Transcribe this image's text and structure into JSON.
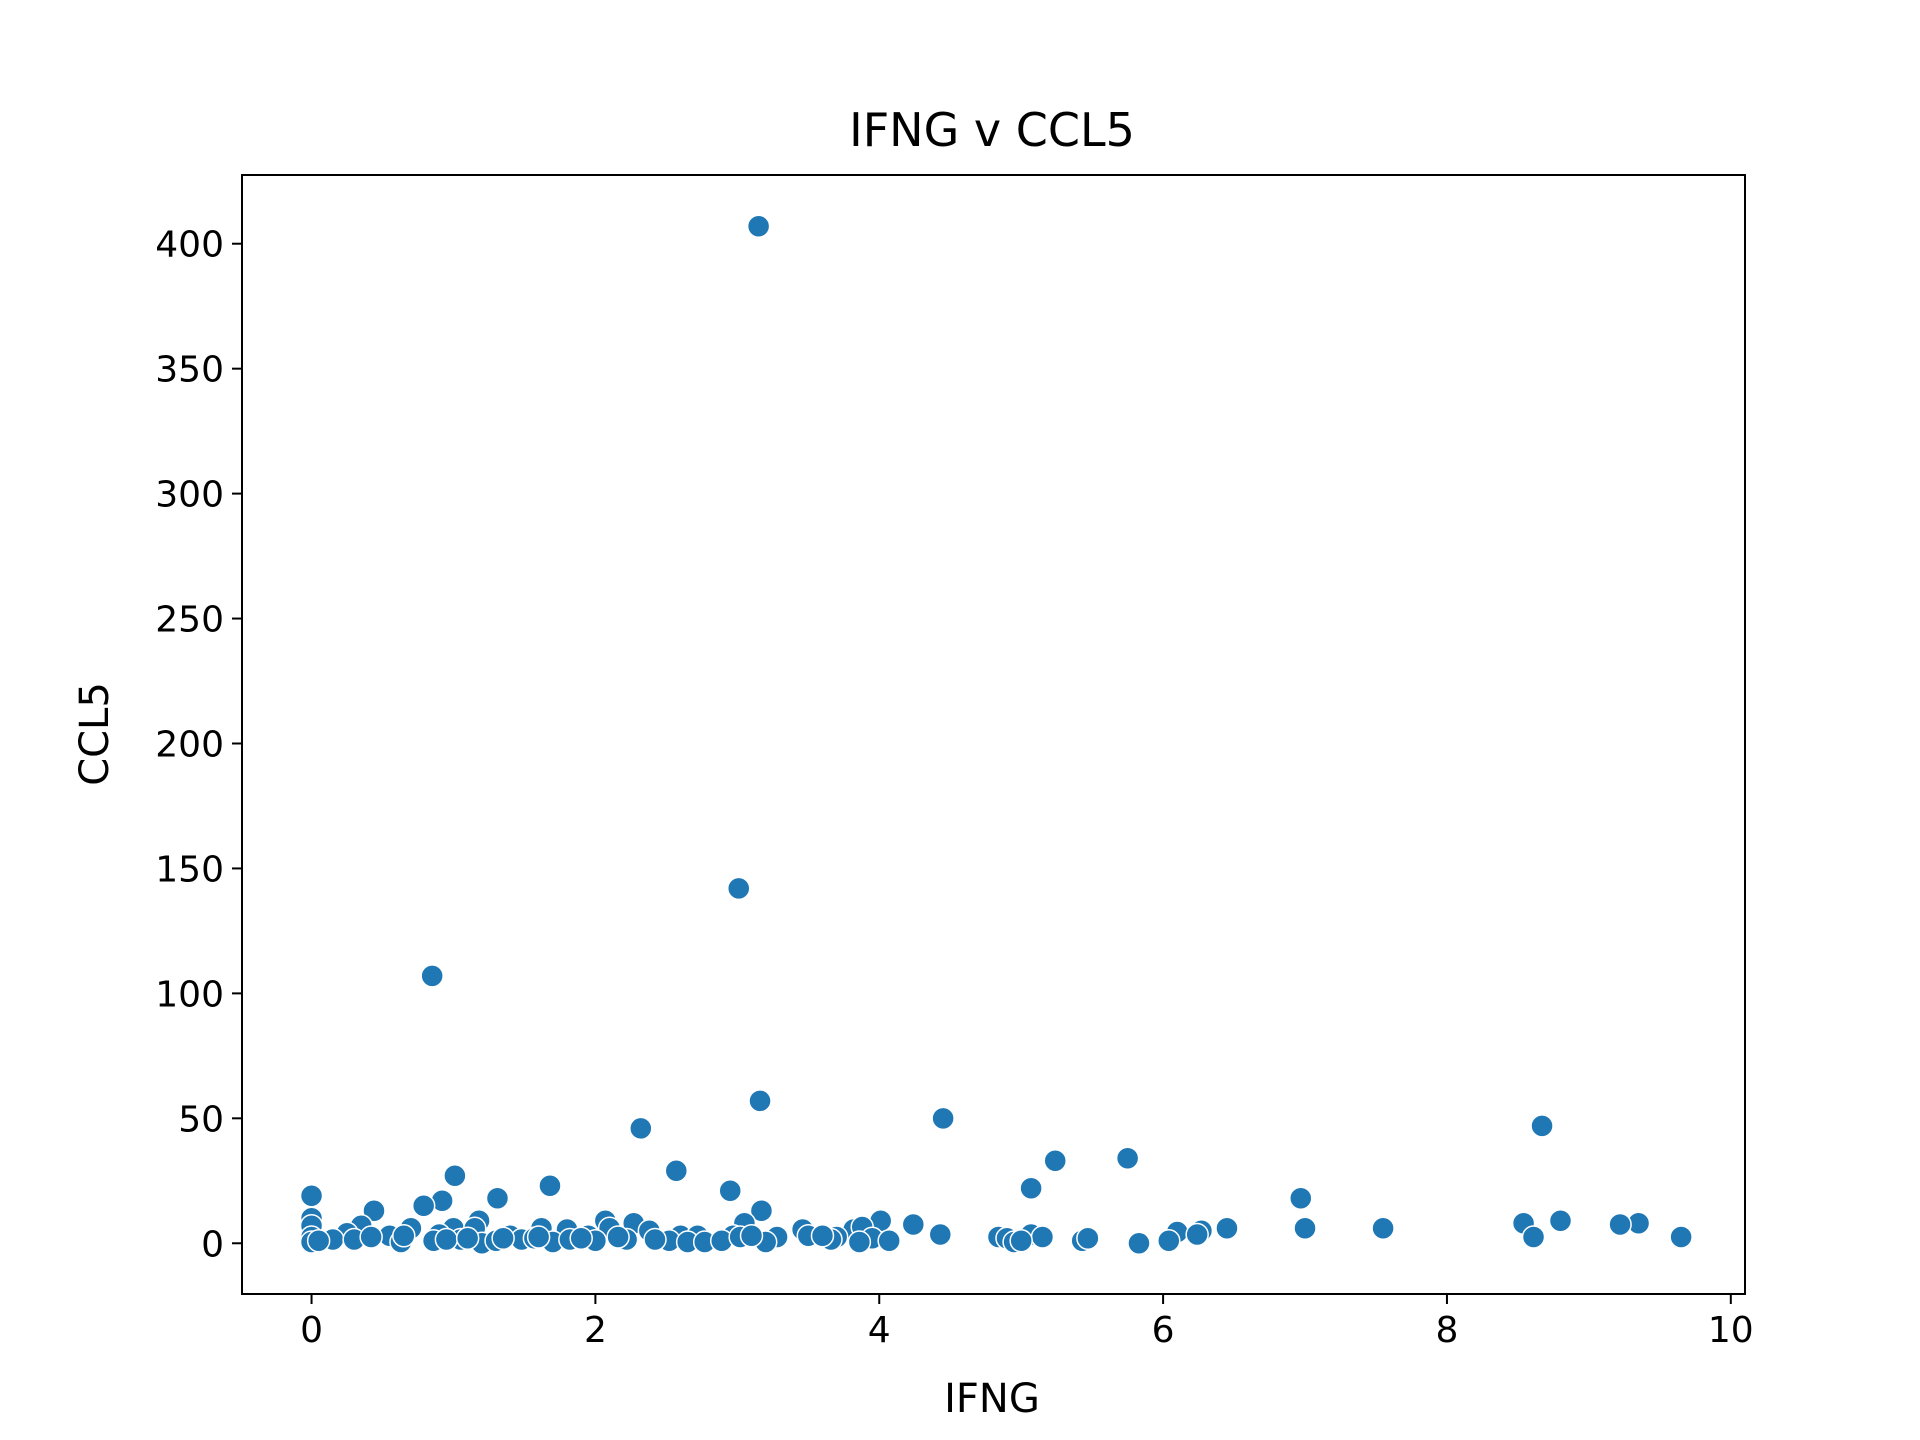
{
  "chart_data": {
    "type": "scatter",
    "title": "IFNG v CCL5",
    "xlabel": "IFNG",
    "ylabel": "CCL5",
    "xlim": [
      -0.49,
      10.1
    ],
    "ylim": [
      -20.3,
      427.5
    ],
    "xticks": [
      0,
      2,
      4,
      6,
      8,
      10
    ],
    "yticks": [
      0,
      50,
      100,
      150,
      200,
      250,
      300,
      350,
      400
    ],
    "grid": false,
    "legend": "none",
    "color": "#1f77b4",
    "series": [
      {
        "points": [
          [
            3.15,
            407
          ],
          [
            3.01,
            142
          ],
          [
            0.85,
            107
          ],
          [
            3.16,
            57
          ],
          [
            4.45,
            50
          ],
          [
            2.32,
            46
          ],
          [
            8.67,
            47
          ],
          [
            5.75,
            34
          ],
          [
            5.24,
            33
          ],
          [
            2.57,
            29
          ],
          [
            1.01,
            27
          ],
          [
            1.68,
            23
          ],
          [
            5.07,
            22
          ],
          [
            2.95,
            21
          ],
          [
            0.0,
            19
          ],
          [
            1.31,
            18
          ],
          [
            0.92,
            17
          ],
          [
            6.97,
            18
          ],
          [
            0.79,
            15
          ],
          [
            3.17,
            13
          ],
          [
            0.44,
            13
          ],
          [
            0.0,
            10
          ],
          [
            1.18,
            9
          ],
          [
            2.07,
            9
          ],
          [
            2.27,
            8
          ],
          [
            4.01,
            9
          ],
          [
            8.8,
            9
          ],
          [
            9.35,
            8
          ],
          [
            9.22,
            7.5
          ],
          [
            8.54,
            8
          ],
          [
            4.24,
            7.5
          ],
          [
            3.05,
            8
          ],
          [
            0.0,
            7
          ],
          [
            0.35,
            7
          ],
          [
            0.7,
            6
          ],
          [
            1.0,
            6
          ],
          [
            1.15,
            6
          ],
          [
            1.62,
            6
          ],
          [
            1.8,
            5.5
          ],
          [
            2.1,
            6
          ],
          [
            2.38,
            5
          ],
          [
            3.46,
            5.5
          ],
          [
            3.82,
            5.5
          ],
          [
            3.88,
            6.5
          ],
          [
            7.0,
            6
          ],
          [
            7.55,
            6
          ],
          [
            6.45,
            6
          ],
          [
            6.27,
            5
          ],
          [
            6.1,
            4.5
          ],
          [
            0.25,
            4
          ],
          [
            0.55,
            3
          ],
          [
            0.9,
            3.5
          ],
          [
            1.4,
            3
          ],
          [
            1.95,
            3
          ],
          [
            2.6,
            3
          ],
          [
            2.72,
            3
          ],
          [
            2.97,
            3
          ],
          [
            3.28,
            2.5
          ],
          [
            3.5,
            3
          ],
          [
            3.7,
            2.5
          ],
          [
            3.95,
            2
          ],
          [
            4.43,
            3.5
          ],
          [
            4.84,
            2.5
          ],
          [
            4.9,
            2
          ],
          [
            5.07,
            3.5
          ],
          [
            5.15,
            2.5
          ],
          [
            6.24,
            3.5
          ],
          [
            8.61,
            2.5
          ],
          [
            9.65,
            2.5
          ],
          [
            0.0,
            2.5
          ],
          [
            0.15,
            1.5
          ],
          [
            0.3,
            1.5
          ],
          [
            0.42,
            2.5
          ],
          [
            0.63,
            0.5
          ],
          [
            0.65,
            3
          ],
          [
            0.86,
            1
          ],
          [
            1.05,
            1.5
          ],
          [
            1.2,
            0
          ],
          [
            1.3,
            1
          ],
          [
            1.48,
            1.5
          ],
          [
            1.57,
            2
          ],
          [
            1.7,
            0.5
          ],
          [
            1.82,
            1.5
          ],
          [
            2.0,
            1
          ],
          [
            2.22,
            1.5
          ],
          [
            2.52,
            1
          ],
          [
            2.65,
            0.5
          ],
          [
            2.77,
            0.5
          ],
          [
            2.89,
            1
          ],
          [
            3.02,
            2.5
          ],
          [
            3.2,
            0.5
          ],
          [
            3.66,
            1.5
          ],
          [
            3.86,
            0.5
          ],
          [
            4.07,
            1
          ],
          [
            4.95,
            0.5
          ],
          [
            5.0,
            1
          ],
          [
            5.43,
            1
          ],
          [
            5.47,
            2
          ],
          [
            5.83,
            0
          ],
          [
            6.04,
            1
          ],
          [
            0.0,
            0.5
          ],
          [
            0.05,
            1
          ],
          [
            0.95,
            1.5
          ],
          [
            1.1,
            2
          ],
          [
            1.35,
            2
          ],
          [
            1.6,
            2.5
          ],
          [
            1.9,
            2
          ],
          [
            2.16,
            2.5
          ],
          [
            2.42,
            1.5
          ],
          [
            3.1,
            3
          ],
          [
            3.6,
            3
          ]
        ]
      }
    ]
  }
}
